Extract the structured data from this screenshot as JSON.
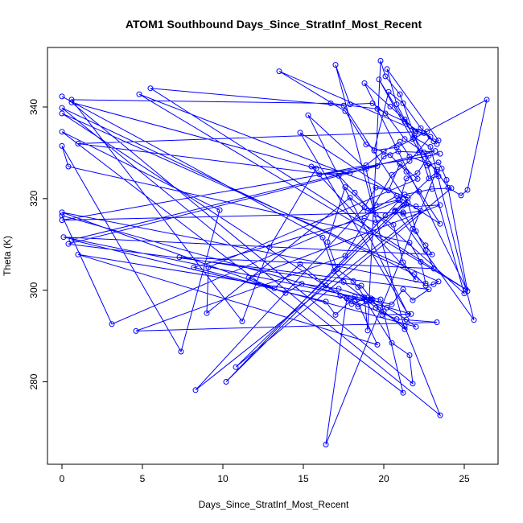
{
  "chart_data": {
    "type": "line",
    "title": "ATOM1 Southbound Days_Since_StratInf_Most_Recent",
    "xlabel": "Days_Since_StratInf_Most_Recent",
    "ylabel": "Theta (K)",
    "xlim": [
      -0.9,
      27.1
    ],
    "ylim": [
      262,
      353
    ],
    "xticks": [
      0,
      5,
      10,
      15,
      20,
      25
    ],
    "yticks": [
      280,
      300,
      320,
      340
    ],
    "grid": false,
    "legend": "none",
    "colors": {
      "series": "#0000ff"
    },
    "series": [
      {
        "points": [
          [
            0.0,
            342.3
          ],
          [
            16.2,
            311.5
          ],
          [
            16.9,
            304.2
          ],
          [
            17.5,
            301.8
          ],
          [
            18.7,
            298.5
          ],
          [
            19.5,
            296.2
          ],
          [
            21.3,
            292.1
          ],
          [
            23.5,
            272.7
          ],
          [
            0.0,
            339.8
          ],
          [
            21.9,
            303.5
          ],
          [
            22.6,
            301.0
          ],
          [
            23.1,
            301.3
          ],
          [
            23.4,
            301.9
          ],
          [
            0.0,
            338.6
          ],
          [
            17.3,
            298.8
          ],
          [
            18.0,
            297.0
          ],
          [
            19.0,
            298.4
          ],
          [
            19.8,
            298.0
          ],
          [
            21.2,
            277.6
          ],
          [
            0.0,
            334.6
          ],
          [
            9.8,
            317.5
          ],
          [
            7.4,
            286.6
          ],
          [
            0.0,
            331.5
          ],
          [
            0.4,
            327.0
          ],
          [
            21.6,
            310.4
          ],
          [
            22.3,
            306.2
          ],
          [
            22.6,
            301.5
          ],
          [
            0.0,
            317.0
          ],
          [
            13.9,
            299.4
          ],
          [
            14.9,
            301.4
          ],
          [
            17.2,
            300.3
          ],
          [
            19.3,
            298.0
          ],
          [
            19.9,
            294.6
          ],
          [
            21.7,
            294.8
          ],
          [
            0.0,
            316.3
          ],
          [
            3.1,
            292.6
          ],
          [
            21.0,
            319.7
          ],
          [
            21.4,
            324.4
          ],
          [
            22.1,
            325.6
          ],
          [
            22.8,
            329.4
          ],
          [
            23.5,
            329.8
          ],
          [
            0.0,
            315.3
          ],
          [
            21.2,
            317.0
          ],
          [
            21.8,
            313.4
          ],
          [
            22.6,
            309.8
          ],
          [
            23.0,
            307.8
          ],
          [
            0.1,
            311.6
          ],
          [
            20.5,
            296.9
          ],
          [
            21.2,
            300.2
          ],
          [
            21.8,
            297.8
          ],
          [
            22.8,
            300.2
          ],
          [
            0.4,
            310.1
          ],
          [
            19.6,
            327.1
          ],
          [
            20.0,
            329.2
          ],
          [
            20.9,
            330.3
          ],
          [
            22.2,
            330.1
          ],
          [
            23.2,
            330.4
          ],
          [
            0.6,
            311.0
          ],
          [
            16.4,
            297.5
          ],
          [
            17.0,
            294.6
          ],
          [
            18.2,
            298.6
          ],
          [
            19.6,
            288.1
          ],
          [
            1.0,
            307.8
          ],
          [
            18.9,
            297.6
          ],
          [
            20.5,
            288.5
          ],
          [
            21.6,
            285.8
          ],
          [
            21.8,
            279.6
          ],
          [
            0.6,
            341.0
          ],
          [
            15.8,
            326.6
          ],
          [
            12.9,
            309.4
          ],
          [
            11.2,
            293.2
          ],
          [
            0.6,
            341.6
          ],
          [
            16.7,
            340.8
          ],
          [
            19.6,
            339.6
          ],
          [
            21.3,
            336.8
          ],
          [
            22.2,
            334.6
          ],
          [
            1.0,
            332.0
          ],
          [
            17.2,
            325.0
          ],
          [
            18.2,
            321.3
          ],
          [
            19.2,
            317.3
          ],
          [
            20.8,
            320.6
          ],
          [
            21.5,
            320.2
          ],
          [
            4.8,
            342.8
          ],
          [
            25.1,
            300.2
          ],
          [
            5.5,
            344.1
          ],
          [
            17.5,
            340.3
          ],
          [
            21.5,
            319.1
          ],
          [
            22.0,
            312.9
          ],
          [
            22.6,
            308.7
          ],
          [
            23.1,
            304.7
          ],
          [
            7.3,
            307.2
          ],
          [
            18.6,
            301.0
          ],
          [
            19.2,
            298.2
          ],
          [
            20.2,
            296.2
          ],
          [
            21.4,
            293.6
          ],
          [
            22.0,
            292.0
          ],
          [
            8.2,
            305.0
          ],
          [
            18.8,
            315.7
          ],
          [
            19.5,
            314.8
          ],
          [
            20.7,
            317.1
          ],
          [
            21.2,
            316.7
          ],
          [
            22.3,
            317.3
          ],
          [
            8.3,
            278.2
          ],
          [
            18.8,
            318.1
          ],
          [
            19.5,
            322.4
          ],
          [
            20.3,
            321.8
          ],
          [
            21.0,
            327.6
          ],
          [
            22.1,
            324.3
          ],
          [
            9.1,
            305.0
          ],
          [
            9.0,
            295.0
          ],
          [
            17.9,
            320.2
          ],
          [
            19.0,
            317.3
          ],
          [
            19.5,
            318.6
          ],
          [
            20.9,
            319.7
          ],
          [
            21.3,
            318.7
          ],
          [
            10.2,
            280.0
          ],
          [
            20.1,
            316.3
          ],
          [
            21.3,
            320.9
          ],
          [
            22.2,
            321.5
          ],
          [
            23.0,
            322.1
          ],
          [
            24.2,
            322.3
          ],
          [
            10.8,
            283.2
          ],
          [
            20.7,
            317.2
          ],
          [
            21.2,
            318.5
          ],
          [
            22.0,
            318.3
          ],
          [
            23.5,
            318.6
          ],
          [
            11.6,
            302.7
          ],
          [
            13.2,
            300.4
          ],
          [
            14.8,
            305.7
          ],
          [
            16.4,
            301.0
          ],
          [
            18.2,
            297.5
          ],
          [
            20.8,
            293.7
          ],
          [
            23.3,
            293.0
          ],
          [
            4.6,
            291.1
          ],
          [
            17.6,
            307.5
          ],
          [
            20.5,
            325.2
          ],
          [
            21.6,
            328.2
          ],
          [
            22.9,
            333.5
          ],
          [
            13.5,
            347.8
          ],
          [
            17.6,
            339.1
          ],
          [
            18.9,
            331.8
          ],
          [
            20.4,
            329.5
          ],
          [
            21.4,
            325.9
          ],
          [
            23.5,
            314.5
          ],
          [
            14.8,
            334.4
          ],
          [
            21.5,
            294.8
          ],
          [
            15.3,
            338.2
          ],
          [
            18.9,
            326.5
          ],
          [
            19.5,
            316.5
          ],
          [
            20.6,
            314.3
          ],
          [
            21.2,
            306.1
          ],
          [
            22.0,
            302.3
          ],
          [
            15.5,
            327.0
          ],
          [
            17.9,
            325.6
          ],
          [
            16.0,
            325.3
          ],
          [
            18.9,
            327.3
          ],
          [
            20.0,
            330.3
          ],
          [
            21.0,
            332.4
          ],
          [
            21.6,
            329.2
          ],
          [
            22.8,
            327.6
          ],
          [
            23.3,
            326.3
          ],
          [
            16.4,
            266.3
          ],
          [
            17.7,
            298.2
          ],
          [
            18.4,
            296.4
          ],
          [
            19.2,
            297.9
          ],
          [
            20.0,
            295.4
          ],
          [
            21.3,
            291.5
          ],
          [
            17.0,
            349.2
          ],
          [
            17.9,
            340.6
          ],
          [
            19.3,
            340.8
          ],
          [
            20.1,
            338.6
          ],
          [
            21.3,
            333.0
          ],
          [
            22.5,
            330.1
          ],
          [
            25.0,
            299.3
          ],
          [
            17.6,
            322.5
          ],
          [
            16.5,
            310.5
          ],
          [
            17.1,
            304.6
          ],
          [
            18.1,
            302.0
          ],
          [
            18.4,
            300.7
          ],
          [
            18.8,
            298.4
          ],
          [
            19.0,
            291.2
          ],
          [
            19.8,
            350.1
          ],
          [
            20.1,
            346.7
          ],
          [
            21.0,
            342.8
          ],
          [
            21.9,
            333.8
          ],
          [
            22.8,
            324.4
          ],
          [
            23.4,
            324.9
          ],
          [
            19.7,
            346.0
          ],
          [
            22.7,
            327.2
          ],
          [
            23.4,
            327.9
          ],
          [
            23.6,
            326.6
          ],
          [
            23.9,
            324.1
          ],
          [
            25.2,
            299.8
          ],
          [
            18.8,
            345.2
          ],
          [
            20.4,
            340.1
          ],
          [
            21.3,
            337.3
          ],
          [
            22.0,
            334.7
          ],
          [
            22.5,
            334.3
          ],
          [
            23.1,
            332.5
          ],
          [
            23.4,
            332.7
          ],
          [
            20.2,
            348.3
          ],
          [
            20.8,
            340.6
          ],
          [
            21.9,
            333.3
          ],
          [
            22.9,
            331.3
          ],
          [
            25.6,
            293.5
          ],
          [
            20.7,
            317.4
          ],
          [
            23.3,
            325.9
          ],
          [
            24.0,
            322.4
          ],
          [
            24.8,
            320.7
          ],
          [
            25.2,
            321.9
          ],
          [
            26.4,
            341.6
          ],
          [
            22.7,
            334.7
          ],
          [
            21.8,
            333.0
          ],
          [
            20.8,
            331.2
          ],
          [
            19.4,
            330.5
          ],
          [
            20.3,
            343.3
          ],
          [
            21.2,
            340.8
          ],
          [
            22.3,
            335.4
          ],
          [
            23.3,
            331.9
          ]
        ]
      }
    ]
  }
}
